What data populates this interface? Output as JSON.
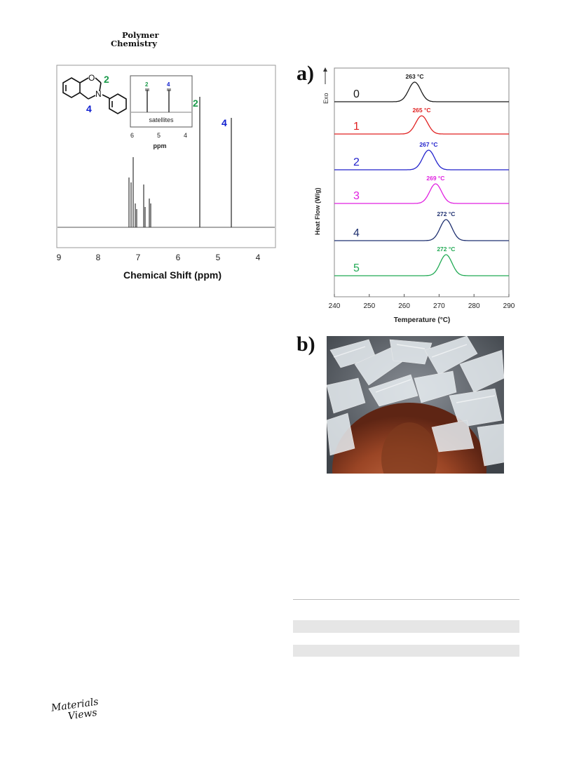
{
  "journal_name": {
    "line1": "Polymer",
    "line2": "Chemistry"
  },
  "nmr": {
    "xlabel": "Chemical Shift (ppm)",
    "ticks": [
      "9",
      "8",
      "7",
      "6",
      "5",
      "4"
    ],
    "peak_labels": [
      "2",
      "4"
    ],
    "molecule_labels": [
      "2",
      "4"
    ],
    "inset": {
      "peak_labels": [
        "2",
        "4"
      ],
      "satellites_label": "satellites",
      "ticks": [
        "6",
        "5",
        "4"
      ],
      "xlabel": "ppm"
    },
    "colors": {
      "green": "#1a9a4a",
      "blue": "#1020d0"
    }
  },
  "panel_a": {
    "label": "a)",
    "exo_label": "Exo",
    "chart_data": {
      "type": "line",
      "xlabel": "Temperature (°C)",
      "ylabel": "Heat Flow (W/g)",
      "xlim": [
        240,
        290
      ],
      "xticks": [
        "240",
        "250",
        "260",
        "270",
        "280",
        "290"
      ],
      "series": [
        {
          "name": "0",
          "peak": 263,
          "peak_label": "263 °C",
          "color": "#1a1a1a"
        },
        {
          "name": "1",
          "peak": 265,
          "peak_label": "265 °C",
          "color": "#e02020"
        },
        {
          "name": "2",
          "peak": 267,
          "peak_label": "267 °C",
          "color": "#2222cc"
        },
        {
          "name": "3",
          "peak": 269,
          "peak_label": "269 °C",
          "color": "#e020e0"
        },
        {
          "name": "4",
          "peak": 272,
          "peak_label": "272 °C",
          "color": "#1f3070"
        },
        {
          "name": "5",
          "peak": 272,
          "peak_label": "272 °C",
          "color": "#22aa55"
        }
      ]
    }
  },
  "panel_b": {
    "label": "b)"
  },
  "footer": {
    "logo_line1": "Materials",
    "logo_line2": "Views"
  }
}
